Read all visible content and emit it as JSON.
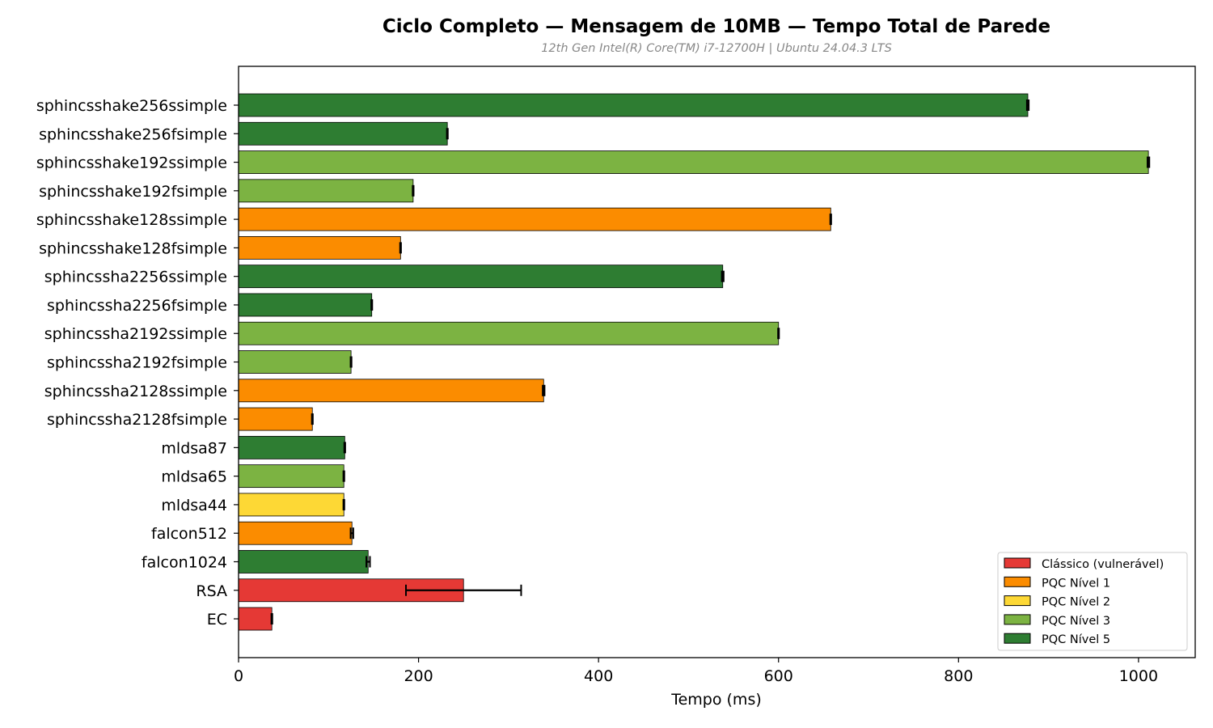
{
  "chart_data": {
    "type": "bar",
    "orientation": "horizontal",
    "title": "Ciclo Completo — Mensagem de 10MB — Tempo Total de Parede",
    "subtitle": "12th Gen Intel(R) Core(TM) i7-12700H | Ubuntu 24.04.3 LTS",
    "xlabel": "Tempo (ms)",
    "ylabel": "",
    "xlim": [
      0,
      1063
    ],
    "xticks": [
      0,
      200,
      400,
      600,
      800,
      1000
    ],
    "grid": false,
    "legend_position": "lower-right",
    "colors": {
      "Clássico (vulnerável)": "#e53935",
      "PQC Nível 1": "#fb8c00",
      "PQC Nível 2": "#fdd835",
      "PQC Nível 3": "#7cb342",
      "PQC Nível 5": "#2e7d32"
    },
    "legend": [
      "Clássico (vulnerável)",
      "PQC Nível 1",
      "PQC Nível 2",
      "PQC Nível 3",
      "PQC Nível 5"
    ],
    "bars": [
      {
        "label": "sphincsshake256ssimple",
        "value": 877,
        "error": 1,
        "group": "PQC Nível 5"
      },
      {
        "label": "sphincsshake256fsimple",
        "value": 232,
        "error": 0.5,
        "group": "PQC Nível 5"
      },
      {
        "label": "sphincsshake192ssimple",
        "value": 1011,
        "error": 1,
        "group": "PQC Nível 3"
      },
      {
        "label": "sphincsshake192fsimple",
        "value": 194,
        "error": 0.5,
        "group": "PQC Nível 3"
      },
      {
        "label": "sphincsshake128ssimple",
        "value": 658,
        "error": 0.5,
        "group": "PQC Nível 1"
      },
      {
        "label": "sphincsshake128fsimple",
        "value": 180,
        "error": 0.5,
        "group": "PQC Nível 1"
      },
      {
        "label": "sphincssha2256ssimple",
        "value": 538,
        "error": 1,
        "group": "PQC Nível 5"
      },
      {
        "label": "sphincssha2256fsimple",
        "value": 148,
        "error": 0.5,
        "group": "PQC Nível 5"
      },
      {
        "label": "sphincssha2192ssimple",
        "value": 600,
        "error": 0.5,
        "group": "PQC Nível 3"
      },
      {
        "label": "sphincssha2192fsimple",
        "value": 125,
        "error": 0.5,
        "group": "PQC Nível 3"
      },
      {
        "label": "sphincssha2128ssimple",
        "value": 339,
        "error": 1,
        "group": "PQC Nível 1"
      },
      {
        "label": "sphincssha2128fsimple",
        "value": 82,
        "error": 0.5,
        "group": "PQC Nível 1"
      },
      {
        "label": "mldsa87",
        "value": 118,
        "error": 0.5,
        "group": "PQC Nível 5"
      },
      {
        "label": "mldsa65",
        "value": 117,
        "error": 0.5,
        "group": "PQC Nível 3"
      },
      {
        "label": "mldsa44",
        "value": 117,
        "error": 0.5,
        "group": "PQC Nível 2"
      },
      {
        "label": "falcon512",
        "value": 126,
        "error": 1.5,
        "group": "PQC Nível 1"
      },
      {
        "label": "falcon1024",
        "value": 144,
        "error": 2,
        "group": "PQC Nível 5"
      },
      {
        "label": "RSA",
        "value": 250,
        "error": 64,
        "group": "Clássico (vulnerável)"
      },
      {
        "label": "EC",
        "value": 37,
        "error": 0.5,
        "group": "Clássico (vulnerável)"
      }
    ]
  }
}
